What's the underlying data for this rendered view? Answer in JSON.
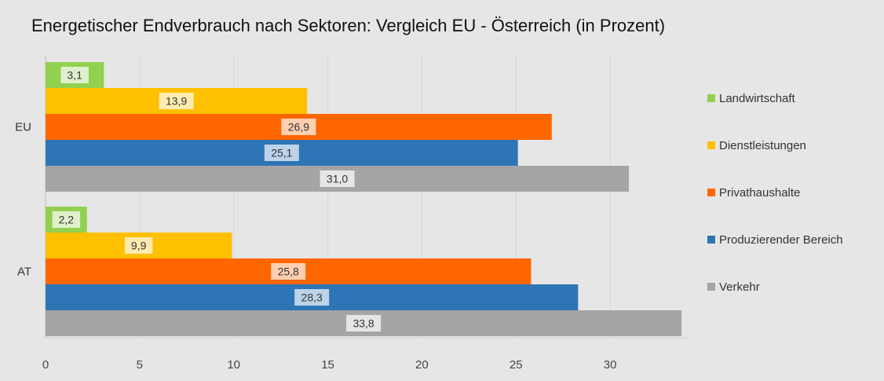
{
  "chart_data": {
    "type": "bar",
    "orientation": "horizontal",
    "title": "Energetischer Endverbrauch nach Sektoren: Vergleich EU - Österreich (in Prozent)",
    "categories": [
      "EU",
      "AT"
    ],
    "series": [
      {
        "name": "Landwirtschaft",
        "color": "#92D050",
        "label_bg": "#DFF0CC",
        "values": [
          3.1,
          2.2
        ],
        "labels": [
          "3,1",
          "2,2"
        ]
      },
      {
        "name": "Dienstleistungen",
        "color": "#FFC000",
        "label_bg": "#FFEBB0",
        "values": [
          13.9,
          9.9
        ],
        "labels": [
          "13,9",
          "9,9"
        ]
      },
      {
        "name": "Privathaushalte",
        "color": "#FF6600",
        "label_bg": "#FFCFB0",
        "values": [
          26.9,
          25.8
        ],
        "labels": [
          "26,9",
          "25,8"
        ]
      },
      {
        "name": "Produzierender Bereich",
        "color": "#2E75B6",
        "label_bg": "#BDD3EA",
        "values": [
          25.1,
          28.3
        ],
        "labels": [
          "25,1",
          "28,3"
        ]
      },
      {
        "name": "Verkehr",
        "color": "#A5A5A5",
        "label_bg": "#E6E6E6",
        "values": [
          31.0,
          33.8
        ],
        "labels": [
          "31,0",
          "33,8"
        ]
      }
    ],
    "xticks": [
      "0",
      "5",
      "10",
      "15",
      "20",
      "25",
      "30"
    ],
    "xlim": [
      0,
      34
    ],
    "grid": true,
    "legend": "right",
    "xlabel": "",
    "ylabel": ""
  }
}
